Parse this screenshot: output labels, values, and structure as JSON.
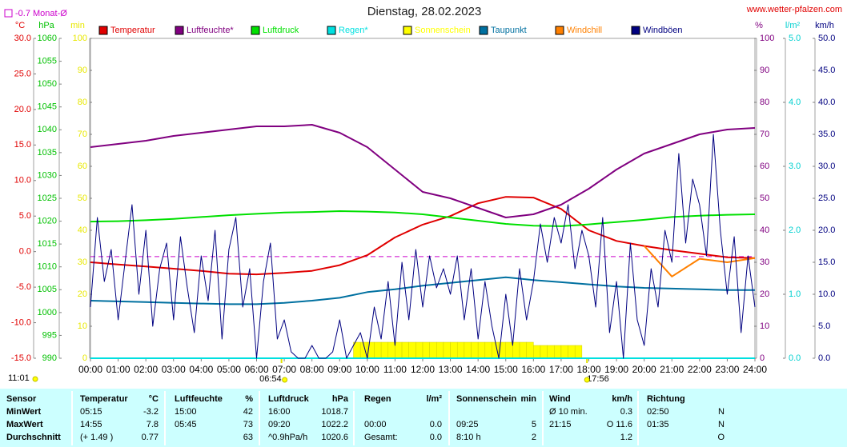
{
  "chart_data": {
    "type": "line",
    "title": "Dienstag, 28.02.2023",
    "source": "www.wetter-pfalzen.com",
    "reference": {
      "value": -0.7,
      "label": "-0.7 Monat-Ø",
      "color": "#cc00cc"
    },
    "sunrise": "06:54",
    "sunset": "17:56",
    "updated": "11:01",
    "axes": {
      "temp": {
        "label": "°C",
        "color": "#e00000",
        "lim": [
          -15,
          30
        ],
        "ticks": [
          {
            "value": -15,
            "label": "-15.0"
          },
          {
            "value": -10,
            "label": "-10.0"
          },
          {
            "value": -5,
            "label": "-5.0"
          },
          {
            "value": 0,
            "label": "0.0"
          },
          {
            "value": 5,
            "label": "5.0"
          },
          {
            "value": 10,
            "label": "10.0"
          },
          {
            "value": 15,
            "label": "15.0"
          },
          {
            "value": 20,
            "label": "20.0"
          },
          {
            "value": 25,
            "label": "25.0"
          },
          {
            "value": 30,
            "label": "30.0"
          }
        ]
      },
      "hpa": {
        "label": "hPa",
        "color": "#00c000",
        "lim": [
          990,
          1060
        ],
        "ticks": [
          990,
          995,
          1000,
          1005,
          1010,
          1015,
          1020,
          1025,
          1030,
          1035,
          1040,
          1045,
          1050,
          1055,
          1060
        ]
      },
      "min": {
        "label": "min",
        "color": "#e8e800",
        "lim": [
          0,
          100
        ],
        "ticks": [
          0,
          10,
          20,
          30,
          40,
          50,
          60,
          70,
          80,
          90,
          100
        ]
      },
      "pct": {
        "label": "%",
        "color": "#800080",
        "lim": [
          0,
          100
        ],
        "ticks": [
          0,
          10,
          20,
          30,
          40,
          50,
          60,
          70,
          80,
          90,
          100
        ]
      },
      "rain": {
        "label": "l/m²",
        "color": "#00d0d0",
        "lim": [
          0,
          5
        ],
        "ticks": [
          {
            "value": 0,
            "label": "0.0"
          },
          {
            "value": 1,
            "label": "1.0"
          },
          {
            "value": 2,
            "label": "2.0"
          },
          {
            "value": 3,
            "label": "3.0"
          },
          {
            "value": 4,
            "label": "4.0"
          },
          {
            "value": 5,
            "label": "5.0"
          }
        ]
      },
      "kmh": {
        "label": "km/h",
        "color": "#000080",
        "lim": [
          0,
          50
        ],
        "ticks": [
          {
            "value": 0,
            "label": "0.0"
          },
          {
            "value": 5,
            "label": "5.0"
          },
          {
            "value": 10,
            "label": "10.0"
          },
          {
            "value": 15,
            "label": "15.0"
          },
          {
            "value": 20,
            "label": "20.0"
          },
          {
            "value": 25,
            "label": "25.0"
          },
          {
            "value": 30,
            "label": "30.0"
          },
          {
            "value": 35,
            "label": "35.0"
          },
          {
            "value": 40,
            "label": "40.0"
          },
          {
            "value": 45,
            "label": "45.0"
          },
          {
            "value": 50,
            "label": "50.0"
          }
        ]
      }
    },
    "xlim": [
      0,
      24
    ],
    "xticks": [
      {
        "value": 0,
        "label": "00:00"
      },
      {
        "value": 1,
        "label": "01:00"
      },
      {
        "value": 2,
        "label": "02:00"
      },
      {
        "value": 3,
        "label": "03:00"
      },
      {
        "value": 4,
        "label": "04:00"
      },
      {
        "value": 5,
        "label": "05:00"
      },
      {
        "value": 6,
        "label": "06:00"
      },
      {
        "value": 7,
        "label": "07:00"
      },
      {
        "value": 8,
        "label": "08:00"
      },
      {
        "value": 9,
        "label": "09:00"
      },
      {
        "value": 10,
        "label": "10:00"
      },
      {
        "value": 11,
        "label": "11:00"
      },
      {
        "value": 12,
        "label": "12:00"
      },
      {
        "value": 13,
        "label": "13:00"
      },
      {
        "value": 14,
        "label": "14:00"
      },
      {
        "value": 15,
        "label": "15:00"
      },
      {
        "value": 16,
        "label": "16:00"
      },
      {
        "value": 17,
        "label": "17:00"
      },
      {
        "value": 18,
        "label": "18:00"
      },
      {
        "value": 19,
        "label": "19:00"
      },
      {
        "value": 20,
        "label": "20:00"
      },
      {
        "value": 21,
        "label": "21:00"
      },
      {
        "value": 22,
        "label": "22:00"
      },
      {
        "value": 23,
        "label": "23:00"
      },
      {
        "value": 24,
        "label": "24:00"
      }
    ],
    "x": [
      0,
      1,
      2,
      3,
      4,
      5,
      6,
      7,
      8,
      9,
      10,
      11,
      12,
      13,
      14,
      15,
      16,
      17,
      18,
      19,
      20,
      21,
      22,
      23,
      24
    ],
    "series": [
      {
        "name": "Temperatur",
        "color": "#e00000",
        "axis": "temp",
        "values": [
          -1.5,
          -1.8,
          -2.1,
          -2.4,
          -2.7,
          -3.1,
          -3.2,
          -3.0,
          -2.7,
          -1.9,
          -0.5,
          2.0,
          3.8,
          5.0,
          6.8,
          7.7,
          7.6,
          6.0,
          3.0,
          1.5,
          0.8,
          0.2,
          -0.3,
          -0.8,
          -0.9
        ]
      },
      {
        "name": "Luftfeuchte*",
        "color": "#800080",
        "axis": "pct",
        "values": [
          66,
          67,
          68,
          69.5,
          70.5,
          71.5,
          72.5,
          72.5,
          73,
          70.5,
          66,
          59,
          52,
          50,
          47,
          44,
          45,
          48,
          53,
          59,
          64,
          67,
          70,
          71.5,
          72
        ]
      },
      {
        "name": "Luftdruck",
        "color": "#00e000",
        "axis": "hpa",
        "values": [
          1019.9,
          1020.0,
          1020.2,
          1020.5,
          1020.9,
          1021.3,
          1021.6,
          1021.9,
          1022.0,
          1022.2,
          1022.1,
          1021.9,
          1021.5,
          1020.8,
          1020.1,
          1019.4,
          1019.0,
          1018.9,
          1019.3,
          1019.8,
          1020.3,
          1020.9,
          1021.2,
          1021.4,
          1021.5
        ]
      },
      {
        "name": "Regen*",
        "color": "#00e0e0",
        "axis": "rain",
        "values": [
          0,
          0,
          0,
          0,
          0,
          0,
          0,
          0,
          0,
          0,
          0,
          0,
          0,
          0,
          0,
          0,
          0,
          0,
          0,
          0,
          0,
          0,
          0,
          0,
          0
        ]
      },
      {
        "name": "Sonnenschein",
        "color": "#ffff00",
        "axis": "min",
        "type": "bar",
        "x": [
          9.5,
          9.75,
          10,
          10.25,
          10.5,
          10.75,
          11,
          11.25,
          11.5,
          11.75,
          12,
          12.25,
          12.5,
          12.75,
          13,
          13.25,
          13.5,
          13.75,
          14,
          14.25,
          14.5,
          14.75,
          15,
          15.25,
          15.5,
          15.75,
          16,
          16.25,
          16.5,
          16.75,
          17,
          17.25,
          17.5
        ],
        "values": [
          5,
          5,
          5,
          5,
          5,
          5,
          5,
          5,
          5,
          5,
          5,
          5,
          5,
          5,
          5,
          5,
          5,
          5,
          5,
          5,
          5,
          5,
          5,
          5,
          5,
          5,
          4,
          4,
          4,
          4,
          4,
          4,
          4
        ]
      },
      {
        "name": "Taupunkt",
        "color": "#0070a0",
        "axis": "temp",
        "values": [
          -6.9,
          -7.0,
          -7.1,
          -7.2,
          -7.3,
          -7.4,
          -7.4,
          -7.2,
          -6.9,
          -6.5,
          -5.7,
          -5.3,
          -4.8,
          -4.4,
          -4.0,
          -3.6,
          -4.0,
          -4.3,
          -4.6,
          -4.9,
          -5.1,
          -5.2,
          -5.3,
          -5.4,
          -5.4
        ]
      },
      {
        "name": "Windchill",
        "color": "#ff8000",
        "axis": "temp",
        "values": [
          null,
          null,
          null,
          null,
          null,
          null,
          null,
          null,
          null,
          null,
          null,
          null,
          null,
          null,
          null,
          null,
          null,
          null,
          null,
          null,
          0.8,
          -3.5,
          -1.0,
          -1.5,
          -0.9
        ]
      },
      {
        "name": "Windböen",
        "color": "#000080",
        "axis": "kmh",
        "x": [
          0,
          0.25,
          0.5,
          0.75,
          1,
          1.25,
          1.5,
          1.75,
          2,
          2.25,
          2.5,
          2.75,
          3,
          3.25,
          3.5,
          3.75,
          4,
          4.25,
          4.5,
          4.75,
          5,
          5.25,
          5.5,
          5.75,
          6,
          6.25,
          6.5,
          6.75,
          7,
          7.25,
          7.5,
          7.75,
          8,
          8.25,
          8.5,
          8.75,
          9,
          9.25,
          9.5,
          9.75,
          10,
          10.25,
          10.5,
          10.75,
          11,
          11.25,
          11.5,
          11.75,
          12,
          12.25,
          12.5,
          12.75,
          13,
          13.25,
          13.5,
          13.75,
          14,
          14.25,
          14.5,
          14.75,
          15,
          15.25,
          15.5,
          15.75,
          16,
          16.25,
          16.5,
          16.75,
          17,
          17.25,
          17.5,
          17.75,
          18,
          18.25,
          18.5,
          18.75,
          19,
          19.25,
          19.5,
          19.75,
          20,
          20.25,
          20.5,
          20.75,
          21,
          21.25,
          21.5,
          21.75,
          22,
          22.25,
          22.5,
          22.75,
          23,
          23.25,
          23.5,
          23.75,
          24
        ],
        "values": [
          8,
          22,
          12,
          17,
          6,
          15,
          24,
          10,
          20,
          5,
          14,
          18,
          6,
          19,
          11,
          4,
          16,
          9,
          20,
          3,
          17,
          22,
          8,
          14,
          0,
          12,
          18,
          3,
          6,
          1,
          0,
          0,
          2,
          0,
          0,
          1,
          6,
          0,
          2,
          4,
          0,
          8,
          3,
          12,
          2,
          15,
          6,
          17,
          8,
          16,
          11,
          14,
          10,
          16,
          6,
          14,
          3,
          12,
          5,
          0,
          10,
          2,
          14,
          6,
          12,
          21,
          15,
          22,
          18,
          24,
          14,
          20,
          16,
          8,
          22,
          4,
          12,
          0,
          18,
          6,
          2,
          14,
          8,
          20,
          15,
          32,
          18,
          28,
          24,
          16,
          35,
          20,
          10,
          19,
          4,
          16,
          8
        ]
      }
    ]
  },
  "table": {
    "rows": [
      [
        "Sensor",
        "Temperatur",
        "°C",
        "Luftfeuchte",
        "%",
        "Luftdruck",
        "hPa",
        "Regen",
        "l/m²",
        "Sonnenschein",
        "min",
        "Wind",
        "km/h",
        "Richtung",
        null
      ],
      [
        "MinWert",
        "05:15",
        "-3.2",
        "15:00",
        "42",
        "16:00",
        "1018.7",
        null,
        null,
        null,
        null,
        "Ø 10 min.",
        "0.3",
        "02:50",
        "N"
      ],
      [
        "MaxWert",
        "14:55",
        "7.8",
        "05:45",
        "73",
        "09:20",
        "1022.2",
        "00:00",
        "0.0",
        "09:25",
        "5",
        "21:15",
        "O 11.6",
        "01:35",
        "N"
      ],
      [
        "Durchschnitt",
        "(+ 1.49 )",
        "0.77",
        null,
        "63",
        "^0.9hPa/h",
        "1020.6",
        "Gesamt:",
        "0.0",
        "8:10 h",
        "2",
        null,
        "1.2",
        null,
        "O"
      ]
    ]
  }
}
